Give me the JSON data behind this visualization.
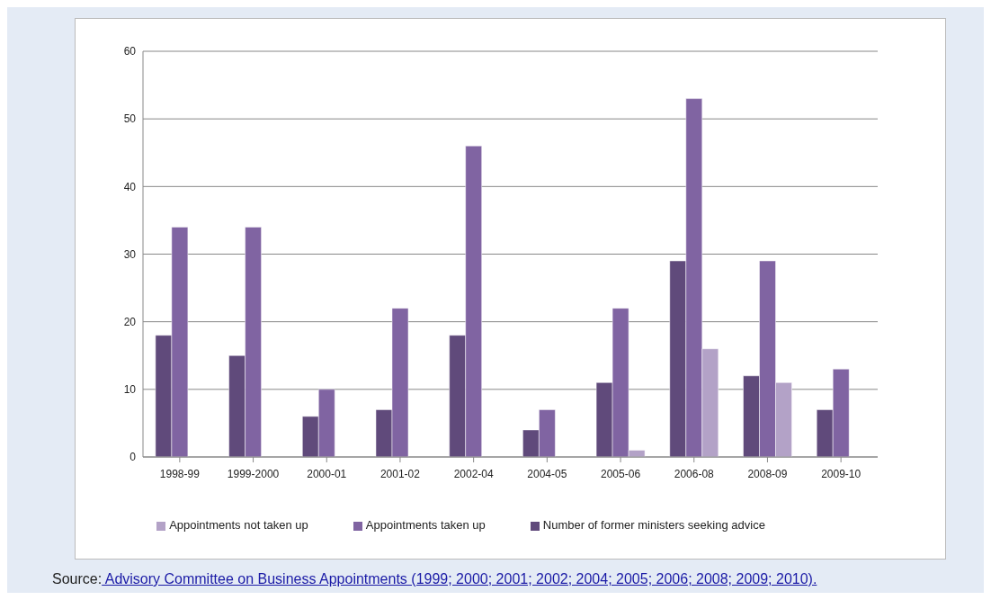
{
  "chart_data": {
    "type": "bar",
    "categories": [
      "1998-99",
      "1999-2000",
      "2000-01",
      "2001-02",
      "2002-04",
      "2004-05",
      "2005-06",
      "2006-08",
      "2008-09",
      "2009-10"
    ],
    "series": [
      {
        "name": "Number of former ministers seeking advice",
        "color": "#604a7b",
        "values": [
          18,
          15,
          6,
          7,
          18,
          4,
          11,
          29,
          12,
          7
        ]
      },
      {
        "name": "Appointments taken up",
        "color": "#8064a2",
        "values": [
          34,
          34,
          10,
          22,
          46,
          7,
          22,
          53,
          29,
          13
        ]
      },
      {
        "name": "Appointments not taken up",
        "color": "#b3a2c7",
        "values": [
          null,
          null,
          null,
          null,
          null,
          null,
          1,
          16,
          11,
          null
        ]
      }
    ],
    "ylim": [
      0,
      60
    ],
    "yticks": [
      0,
      10,
      20,
      30,
      40,
      50,
      60
    ],
    "grid": "y",
    "legend": "bottom",
    "annotations": [
      "Source:",
      "Advisory Committee on Business Appointments (1999; 2000; 2001; 2002; 2004; 2005; 2006; 2008; 2009; 2010)."
    ]
  }
}
